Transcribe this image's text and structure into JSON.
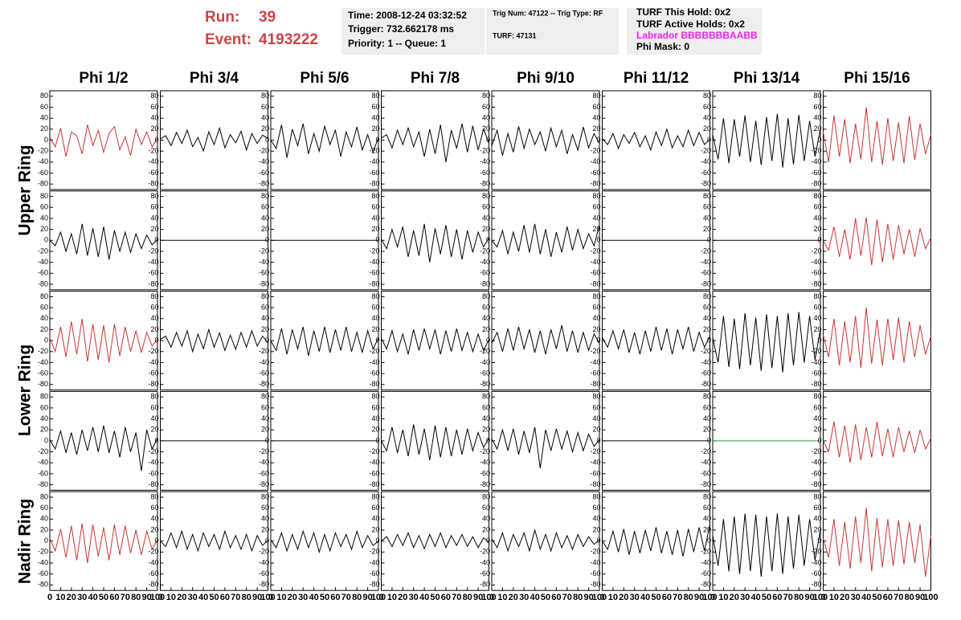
{
  "header": {
    "run_label": "Run:",
    "run": "39",
    "event_label": "Event:",
    "event": "4193222",
    "time": "Time: 2008-12-24 03:32:52",
    "trigger": "Trigger: 732.662178 ms",
    "priority": "Priority: 1 -- Queue: 1",
    "trig_num": "Trig Num: 47122 -- Trig Type: RF",
    "turf": "TURF: 47131",
    "turf_hold": "TURF This Hold: 0x2",
    "turf_active": "TURF Active Holds: 0x2",
    "labrador": "Labrador BBBBBBBAABB",
    "phi_mask": "Phi Mask: 0"
  },
  "columns": [
    "Phi 1/2",
    "Phi 3/4",
    "Phi 5/6",
    "Phi 7/8",
    "Phi 9/10",
    "Phi 11/12",
    "Phi 13/14",
    "Phi 15/16"
  ],
  "row_labels": [
    "Upper Ring",
    "Lower Ring",
    "Nadir Ring"
  ],
  "axes": {
    "xlim": [
      0,
      100
    ],
    "xticks": [
      0,
      10,
      20,
      30,
      40,
      50,
      60,
      70,
      80,
      90,
      100
    ],
    "ylim": [
      -90,
      90
    ],
    "yticks": [
      -80,
      -60,
      -40,
      -20,
      0,
      20,
      40,
      60,
      80
    ],
    "x": [
      0,
      5,
      10,
      15,
      20,
      25,
      30,
      35,
      40,
      45,
      50,
      55,
      60,
      65,
      70,
      75,
      80,
      85,
      90,
      95,
      100
    ]
  },
  "chart_data": [
    {
      "type": "line",
      "color": "#cc3333",
      "values": [
        5,
        -12,
        22,
        -30,
        15,
        8,
        -25,
        28,
        -10,
        18,
        -22,
        12,
        25,
        -18,
        6,
        -28,
        20,
        -8,
        15,
        -12,
        4
      ]
    },
    {
      "type": "line",
      "color": "#000000",
      "values": [
        2,
        8,
        -10,
        14,
        -6,
        18,
        -12,
        5,
        -20,
        15,
        -8,
        22,
        -14,
        10,
        -5,
        16,
        -18,
        12,
        -6,
        9,
        3
      ]
    },
    {
      "type": "line",
      "color": "#000000",
      "values": [
        0,
        -15,
        28,
        -32,
        20,
        -10,
        30,
        -25,
        12,
        -20,
        26,
        -8,
        18,
        -30,
        15,
        -12,
        24,
        -18,
        10,
        -22,
        5
      ]
    },
    {
      "type": "line",
      "color": "#000000",
      "values": [
        4,
        10,
        -14,
        18,
        -8,
        22,
        -12,
        15,
        -30,
        20,
        -25,
        28,
        -40,
        18,
        -15,
        30,
        -22,
        26,
        -18,
        20,
        -5
      ]
    },
    {
      "type": "line",
      "color": "#000000",
      "values": [
        -10,
        18,
        -28,
        12,
        -22,
        25,
        -15,
        20,
        -8,
        15,
        -20,
        22,
        -12,
        18,
        -25,
        10,
        -18,
        24,
        -14,
        12,
        -6
      ]
    },
    {
      "type": "line",
      "color": "#000000",
      "values": [
        3,
        -8,
        12,
        -15,
        10,
        -6,
        14,
        -12,
        8,
        -18,
        15,
        -10,
        20,
        -14,
        8,
        -12,
        18,
        -10,
        14,
        -8,
        2
      ]
    },
    {
      "type": "line",
      "color": "#000000",
      "values": [
        10,
        -35,
        40,
        -42,
        38,
        -30,
        45,
        -40,
        35,
        -45,
        42,
        -38,
        48,
        -50,
        40,
        -44,
        46,
        -38,
        35,
        -30,
        20
      ]
    },
    {
      "type": "line",
      "color": "#cc3333",
      "values": [
        15,
        -40,
        45,
        -30,
        38,
        -42,
        30,
        -35,
        60,
        -40,
        35,
        -45,
        40,
        -38,
        32,
        -42,
        44,
        -36,
        30,
        -25,
        10
      ]
    },
    {
      "type": "line",
      "color": "#000000",
      "values": [
        0,
        -10,
        15,
        -20,
        12,
        -25,
        30,
        -28,
        22,
        -30,
        25,
        -35,
        18,
        -20,
        15,
        -22,
        12,
        -15,
        10,
        -8,
        2
      ]
    },
    {
      "type": "line",
      "color": "#000000",
      "values": [
        0,
        0,
        0,
        0,
        0,
        0,
        0,
        0,
        0,
        0,
        0,
        0,
        0,
        0,
        0,
        0,
        0,
        0,
        0,
        0,
        0
      ]
    },
    {
      "type": "line",
      "color": "#000000",
      "values": [
        0,
        0,
        0,
        0,
        0,
        0,
        0,
        0,
        0,
        0,
        0,
        0,
        0,
        0,
        0,
        0,
        0,
        0,
        0,
        0,
        0
      ]
    },
    {
      "type": "line",
      "color": "#000000",
      "values": [
        2,
        -15,
        20,
        -12,
        25,
        -30,
        18,
        -28,
        30,
        -40,
        22,
        -25,
        28,
        -30,
        20,
        -35,
        18,
        -22,
        15,
        -12,
        5
      ]
    },
    {
      "type": "line",
      "color": "#000000",
      "values": [
        0,
        -12,
        18,
        -25,
        15,
        -20,
        28,
        -22,
        30,
        -25,
        20,
        -30,
        15,
        -22,
        25,
        -18,
        20,
        -15,
        12,
        -10,
        28
      ]
    },
    {
      "type": "line",
      "color": "#000000",
      "values": [
        0,
        0,
        0,
        0,
        0,
        0,
        0,
        0,
        0,
        0,
        0,
        0,
        0,
        0,
        0,
        0,
        0,
        0,
        0,
        0,
        0
      ]
    },
    {
      "type": "line",
      "color": "#000000",
      "values": [
        0,
        0,
        0,
        0,
        0,
        0,
        0,
        0,
        0,
        0,
        0,
        0,
        0,
        0,
        0,
        0,
        0,
        0,
        0,
        0,
        0
      ]
    },
    {
      "type": "line",
      "color": "#cc3333",
      "values": [
        0,
        -18,
        25,
        -30,
        20,
        -35,
        40,
        -28,
        42,
        -45,
        38,
        -40,
        30,
        -35,
        28,
        -25,
        20,
        -30,
        22,
        -15,
        5
      ]
    },
    {
      "type": "line",
      "color": "#cc3333",
      "values": [
        5,
        -20,
        25,
        -30,
        35,
        -25,
        40,
        -38,
        30,
        -35,
        28,
        -40,
        30,
        -28,
        25,
        -20,
        18,
        -22,
        15,
        -10,
        3
      ]
    },
    {
      "type": "line",
      "color": "#000000",
      "values": [
        2,
        8,
        -12,
        15,
        -10,
        18,
        -20,
        12,
        -15,
        20,
        -12,
        14,
        -18,
        10,
        -16,
        15,
        -12,
        18,
        -10,
        8,
        -4
      ]
    },
    {
      "type": "line",
      "color": "#000000",
      "values": [
        0,
        -18,
        22,
        -25,
        20,
        -15,
        25,
        -28,
        18,
        -20,
        25,
        -22,
        20,
        -18,
        25,
        -20,
        15,
        -22,
        18,
        -15,
        5
      ]
    },
    {
      "type": "line",
      "color": "#000000",
      "values": [
        4,
        -15,
        18,
        -20,
        12,
        -25,
        20,
        -18,
        22,
        -15,
        20,
        -25,
        18,
        -20,
        22,
        -18,
        15,
        -20,
        12,
        -18,
        2
      ]
    },
    {
      "type": "line",
      "color": "#000000",
      "values": [
        -5,
        15,
        -20,
        22,
        -18,
        25,
        -15,
        20,
        -22,
        18,
        -25,
        20,
        -15,
        28,
        -20,
        18,
        -22,
        15,
        -18,
        12,
        -5
      ]
    },
    {
      "type": "line",
      "color": "#000000",
      "values": [
        6,
        -12,
        18,
        -15,
        20,
        -22,
        15,
        -25,
        18,
        -20,
        25,
        -18,
        22,
        -25,
        20,
        -15,
        25,
        -20,
        15,
        -12,
        8
      ]
    },
    {
      "type": "line",
      "color": "#000000",
      "values": [
        5,
        -40,
        45,
        -48,
        40,
        -52,
        50,
        -45,
        42,
        -55,
        48,
        -50,
        45,
        -58,
        50,
        -45,
        52,
        -40,
        45,
        -35,
        20
      ]
    },
    {
      "type": "line",
      "color": "#cc3333",
      "values": [
        10,
        -30,
        40,
        -45,
        35,
        -40,
        45,
        -50,
        60,
        -42,
        38,
        -45,
        40,
        -35,
        42,
        -40,
        35,
        -30,
        28,
        -25,
        8
      ]
    },
    {
      "type": "line",
      "color": "#000000",
      "values": [
        2,
        -15,
        18,
        -22,
        15,
        -25,
        20,
        -18,
        25,
        -20,
        28,
        -22,
        18,
        -30,
        25,
        -20,
        15,
        -55,
        20,
        -15,
        5
      ]
    },
    {
      "type": "line",
      "color": "#000000",
      "values": [
        0,
        0,
        0,
        0,
        0,
        0,
        0,
        0,
        0,
        0,
        0,
        0,
        0,
        0,
        0,
        0,
        0,
        0,
        0,
        0,
        0
      ]
    },
    {
      "type": "line",
      "color": "#000000",
      "values": [
        0,
        0,
        0,
        0,
        0,
        0,
        0,
        0,
        0,
        0,
        0,
        0,
        0,
        0,
        0,
        0,
        0,
        0,
        0,
        0,
        0
      ]
    },
    {
      "type": "line",
      "color": "#000000",
      "values": [
        0,
        -18,
        25,
        -22,
        20,
        -28,
        30,
        -25,
        22,
        -35,
        28,
        -30,
        25,
        -28,
        20,
        -25,
        22,
        -18,
        15,
        -12,
        5
      ]
    },
    {
      "type": "line",
      "color": "#000000",
      "values": [
        4,
        -15,
        20,
        -18,
        22,
        -25,
        18,
        -22,
        25,
        -50,
        20,
        -18,
        22,
        -15,
        18,
        -20,
        15,
        -18,
        12,
        -10,
        2
      ]
    },
    {
      "type": "line",
      "color": "#000000",
      "values": [
        0,
        0,
        0,
        0,
        0,
        0,
        0,
        0,
        0,
        0,
        0,
        0,
        0,
        0,
        0,
        0,
        0,
        0,
        0,
        0,
        0
      ]
    },
    {
      "type": "line",
      "color": "#2a9d2a",
      "values": [
        0,
        0,
        0,
        0,
        0,
        0,
        0,
        0,
        0,
        0,
        0,
        0,
        0,
        0,
        0,
        0,
        0,
        0,
        0,
        0,
        0
      ]
    },
    {
      "type": "line",
      "color": "#cc3333",
      "values": [
        0,
        -20,
        35,
        -30,
        28,
        -40,
        30,
        -35,
        25,
        -30,
        35,
        -28,
        22,
        -30,
        25,
        -20,
        18,
        -22,
        20,
        -15,
        5
      ]
    },
    {
      "type": "line",
      "color": "#cc3333",
      "values": [
        5,
        -18,
        22,
        -30,
        28,
        -35,
        32,
        -40,
        30,
        -28,
        25,
        -35,
        30,
        -25,
        28,
        -22,
        20,
        -25,
        18,
        -15,
        3
      ]
    },
    {
      "type": "line",
      "color": "#000000",
      "values": [
        0,
        -10,
        15,
        -12,
        18,
        -15,
        12,
        -18,
        15,
        -10,
        12,
        -15,
        18,
        -12,
        10,
        -15,
        12,
        -18,
        10,
        -8,
        2
      ]
    },
    {
      "type": "line",
      "color": "#000000",
      "values": [
        2,
        -12,
        15,
        -18,
        12,
        -15,
        18,
        -12,
        15,
        -20,
        12,
        -18,
        15,
        -10,
        12,
        -15,
        18,
        -12,
        10,
        -8,
        0
      ]
    },
    {
      "type": "line",
      "color": "#000000",
      "values": [
        0,
        8,
        -10,
        12,
        -8,
        15,
        -12,
        10,
        -14,
        12,
        -10,
        15,
        -12,
        10,
        -8,
        12,
        -10,
        8,
        -12,
        6,
        -2
      ]
    },
    {
      "type": "line",
      "color": "#000000",
      "values": [
        4,
        -12,
        15,
        -18,
        12,
        -10,
        15,
        -18,
        20,
        -15,
        12,
        -18,
        15,
        -12,
        10,
        -15,
        12,
        -10,
        8,
        -6,
        2
      ]
    },
    {
      "type": "line",
      "color": "#000000",
      "values": [
        0,
        -15,
        18,
        -20,
        22,
        -25,
        18,
        -22,
        20,
        -18,
        25,
        -22,
        18,
        -25,
        20,
        -28,
        22,
        -20,
        25,
        -18,
        30
      ]
    },
    {
      "type": "line",
      "color": "#000000",
      "values": [
        10,
        -45,
        40,
        -55,
        45,
        -60,
        50,
        -55,
        48,
        -65,
        45,
        -55,
        50,
        -60,
        45,
        -50,
        48,
        -45,
        40,
        -35,
        20
      ]
    },
    {
      "type": "line",
      "color": "#cc3333",
      "values": [
        5,
        -30,
        40,
        -45,
        35,
        -50,
        45,
        -40,
        60,
        -55,
        42,
        -48,
        40,
        -45,
        38,
        -42,
        35,
        -40,
        30,
        -65,
        10
      ]
    }
  ]
}
